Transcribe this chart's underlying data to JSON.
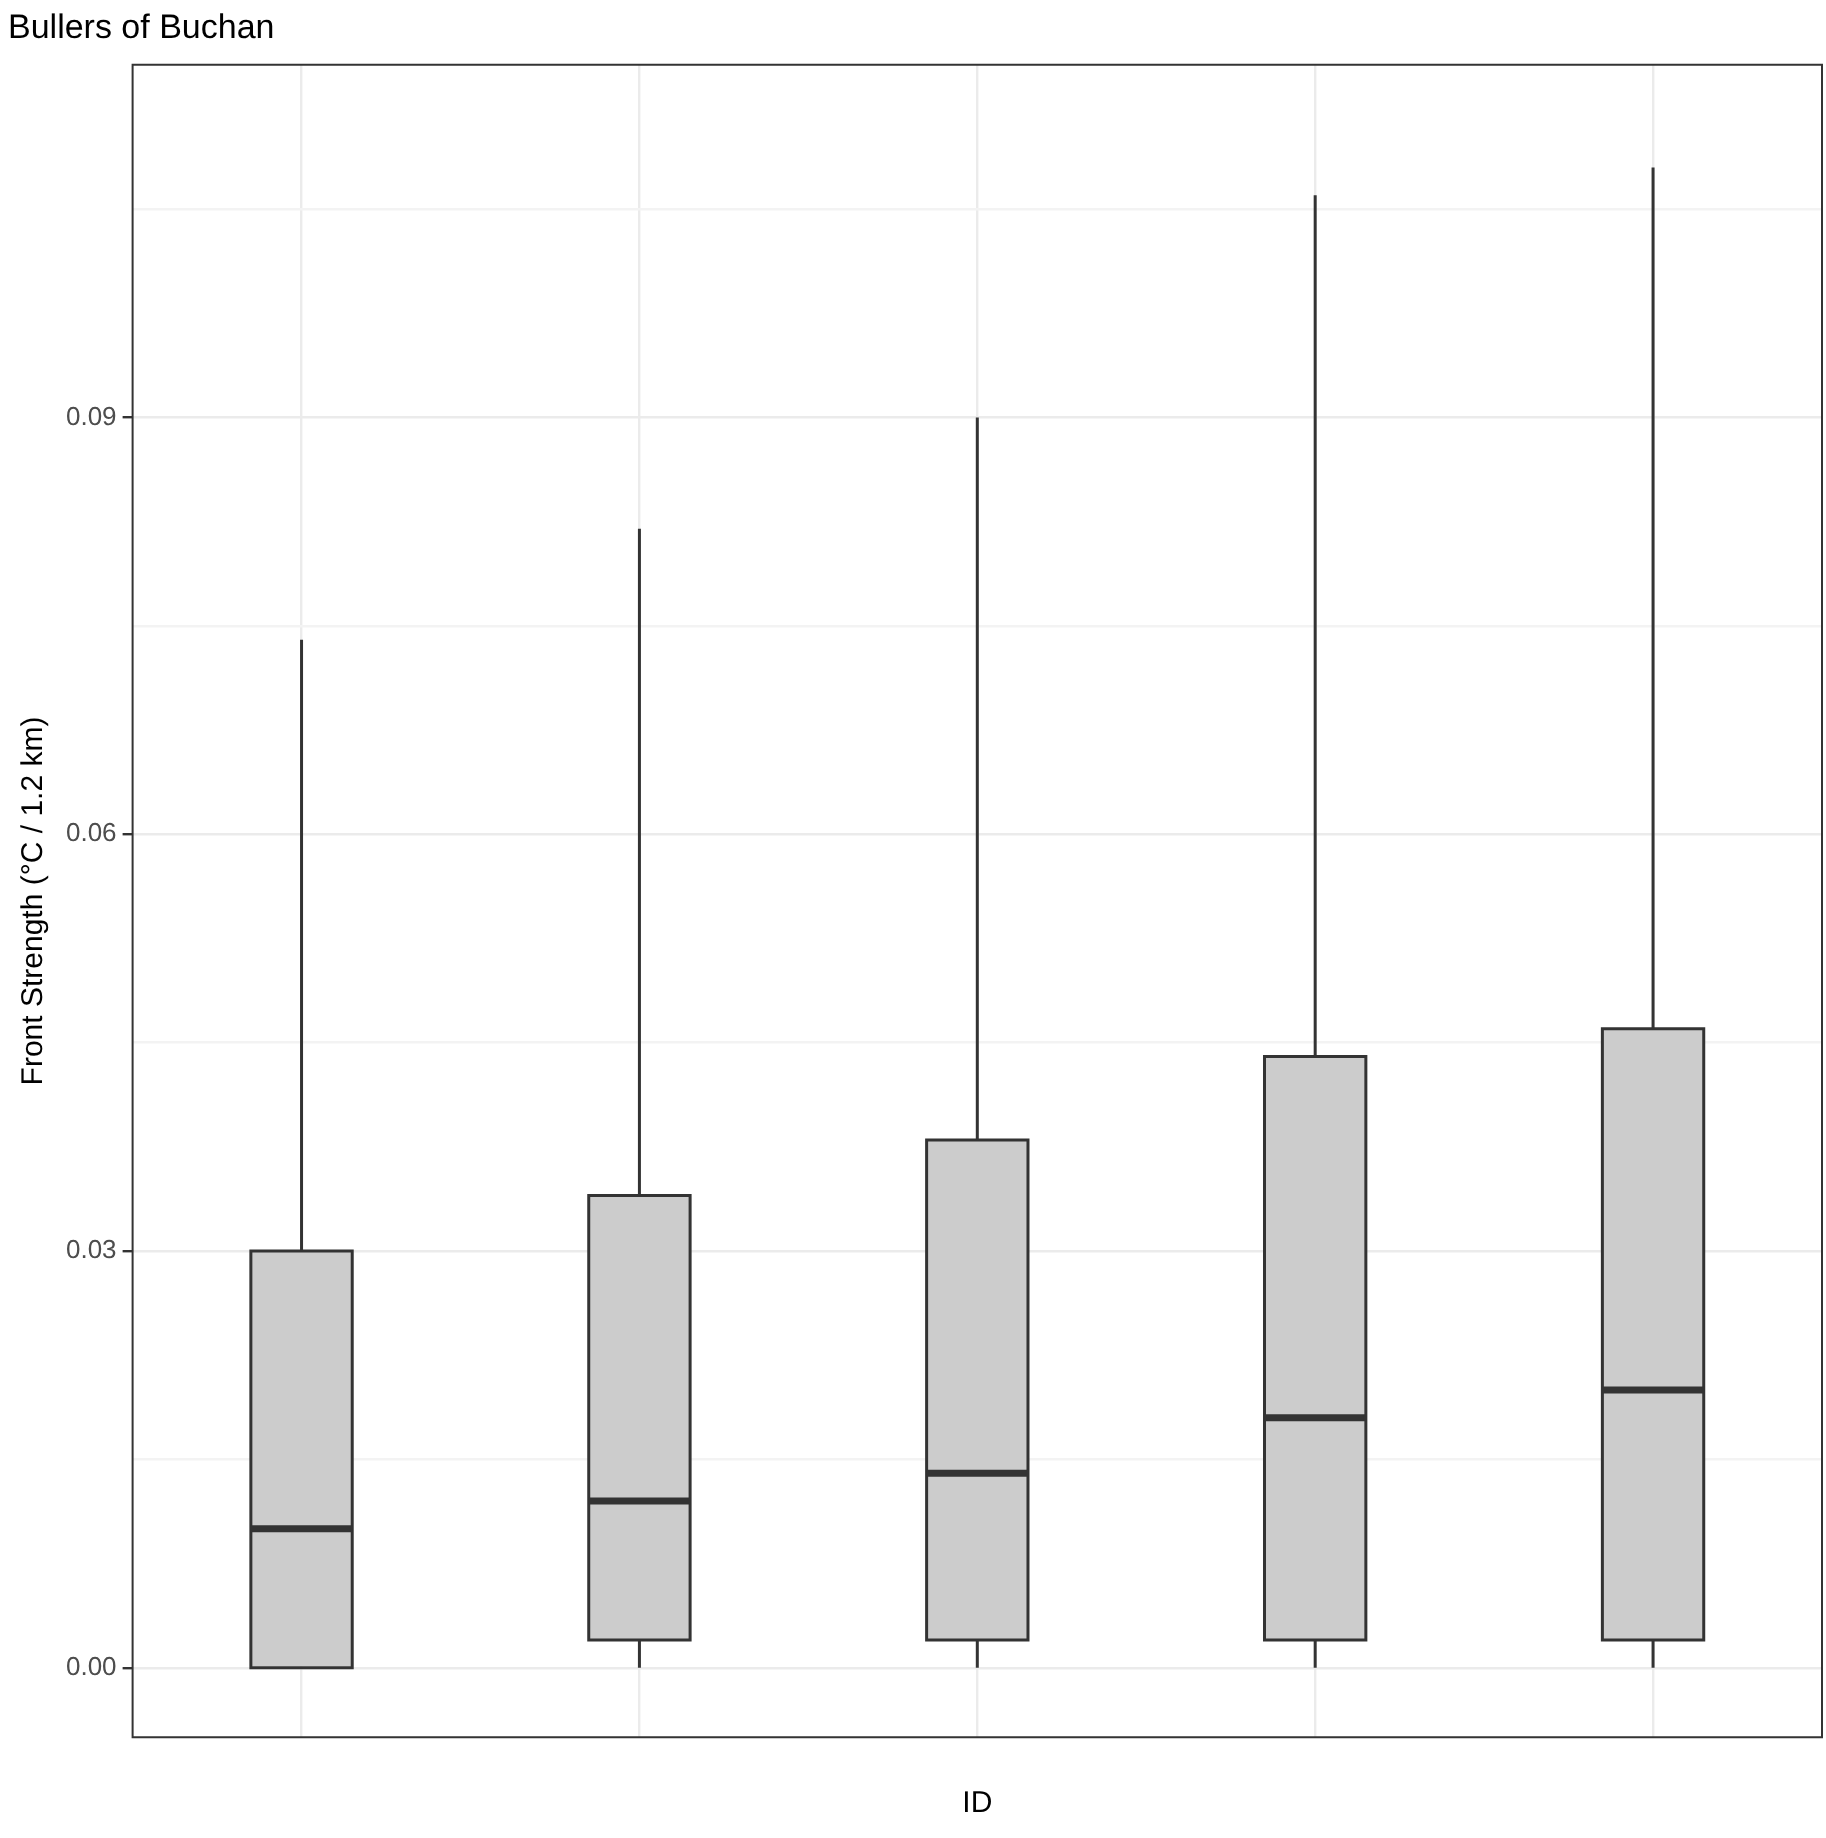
{
  "chart_data": {
    "type": "box",
    "title": "Bullers of Buchan",
    "xlabel": "ID",
    "ylabel": "Front Strength (°C / 1.2 km)",
    "categories": [
      null,
      null,
      null,
      null,
      null
    ],
    "boxes": [
      {
        "low": 0,
        "q1": 0,
        "median": 0.01,
        "q3": 0.03,
        "high": 0.074
      },
      {
        "low": 0,
        "q1": 0.002,
        "median": 0.012,
        "q3": 0.034,
        "high": 0.082
      },
      {
        "low": 0,
        "q1": 0.002,
        "median": 0.014,
        "q3": 0.038,
        "high": 0.09
      },
      {
        "low": 0,
        "q1": 0.002,
        "median": 0.018,
        "q3": 0.044,
        "high": 0.106
      },
      {
        "low": 0,
        "q1": 0.002,
        "median": 0.02,
        "q3": 0.046,
        "high": 0.108
      }
    ],
    "color": "#cccccc",
    "ylim": [
      -0.005,
      0.1154
    ],
    "yticks": [
      {
        "value": 0,
        "label": "0.00"
      },
      {
        "value": 0.015,
        "label": null
      },
      {
        "value": 0.03,
        "label": "0.03"
      },
      {
        "value": 0.045,
        "label": null
      },
      {
        "value": 0.06,
        "label": "0.06"
      },
      {
        "value": 0.075,
        "label": null
      },
      {
        "value": 0.09,
        "label": "0.09"
      },
      {
        "value": 0.105,
        "label": null
      }
    ],
    "grid": true
  }
}
